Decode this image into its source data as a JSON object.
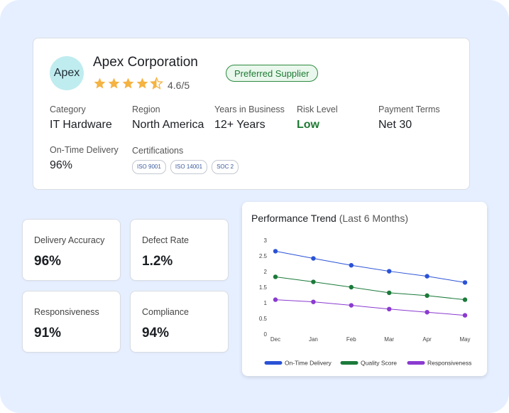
{
  "supplier": {
    "avatar_text": "Apex",
    "name": "Apex Corporation",
    "rating_text": "4.6/5",
    "rating_value": 4.6,
    "badge": "Preferred Supplier",
    "fields": {
      "category": {
        "label": "Category",
        "value": "IT Hardware"
      },
      "region": {
        "label": "Region",
        "value": "North America"
      },
      "years": {
        "label": "Years in Business",
        "value": "12+ Years"
      },
      "risk": {
        "label": "Risk Level",
        "value": "Low"
      },
      "payment": {
        "label": "Payment Terms",
        "value": "Net 30"
      },
      "ontime": {
        "label": "On-Time Delivery",
        "value": "96%"
      },
      "certifications": {
        "label": "Certifications",
        "items": [
          "ISO 9001",
          "ISO 14001",
          "SOC 2"
        ]
      }
    }
  },
  "metrics": [
    {
      "label": "Delivery Accuracy",
      "value": "96%"
    },
    {
      "label": "Defect Rate",
      "value": "1.2%"
    },
    {
      "label": "Responsiveness",
      "value": "91%"
    },
    {
      "label": "Compliance",
      "value": "94%"
    }
  ],
  "chart": {
    "title": "Performance Trend",
    "subtitle": "(Last 6 Months)"
  },
  "colors": {
    "accent": "#2a52d6",
    "green": "#1e7a33",
    "purple": "#8a3ad0",
    "star": "#f5b342"
  },
  "chart_data": {
    "type": "line",
    "categories": [
      "Dec",
      "Jan",
      "Feb",
      "Mar",
      "Apr",
      "May"
    ],
    "ylim": [
      0,
      3
    ],
    "yticks": [
      "0",
      "0.5",
      "1",
      "1.5",
      "2",
      "2.5",
      "3"
    ],
    "grid": false,
    "legend": "bottom",
    "series": [
      {
        "name": "On-Time Delivery",
        "color": "#2a52d6",
        "values": [
          2.65,
          2.42,
          2.2,
          2.01,
          1.85,
          1.65
        ]
      },
      {
        "name": "Quality Score",
        "color": "#1b7a3a",
        "values": [
          1.83,
          1.67,
          1.5,
          1.32,
          1.23,
          1.1
        ]
      },
      {
        "name": "Responsiveness",
        "color": "#8a3ad0",
        "values": [
          1.1,
          1.03,
          0.92,
          0.8,
          0.7,
          0.6
        ]
      }
    ]
  }
}
